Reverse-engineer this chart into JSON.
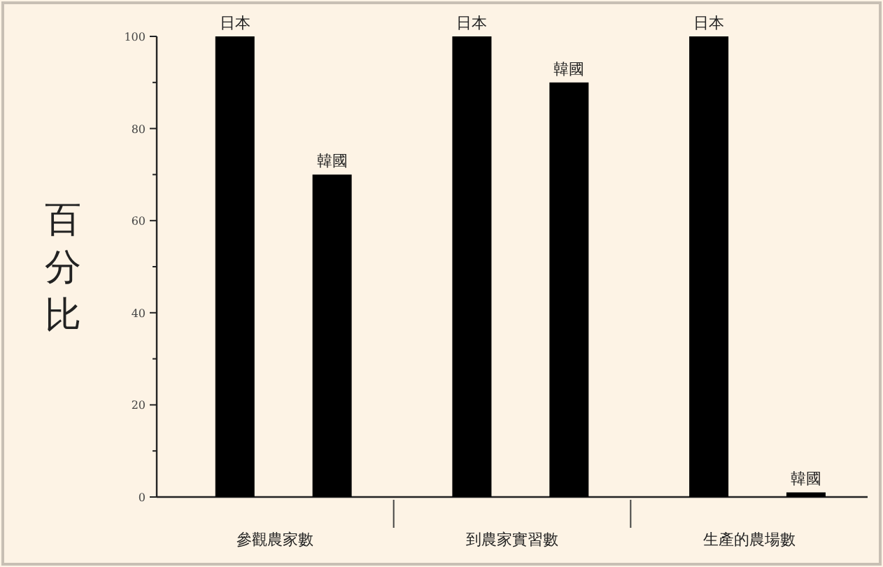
{
  "chart_data": {
    "type": "bar",
    "ylabel": "百分比",
    "categories": [
      "參觀農家數",
      "到農家實習數",
      "生產的農場數"
    ],
    "series": [
      {
        "name": "日本",
        "color": "#000000",
        "values": [
          100,
          100,
          100
        ]
      },
      {
        "name": "韓國",
        "color": "#000000",
        "values": [
          70,
          90,
          1
        ]
      }
    ],
    "ylim": [
      0,
      100
    ],
    "yticks": [
      0,
      {
        "value": 10,
        "label": null
      },
      20,
      {
        "value": 30,
        "label": null
      },
      40,
      {
        "value": 50,
        "label": null
      },
      60,
      {
        "value": 70,
        "label": null
      },
      80,
      {
        "value": 90,
        "label": null
      },
      100
    ]
  }
}
